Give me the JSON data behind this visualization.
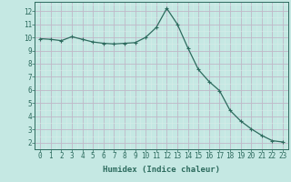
{
  "x": [
    0,
    1,
    2,
    3,
    4,
    5,
    6,
    7,
    8,
    9,
    10,
    11,
    12,
    13,
    14,
    15,
    16,
    17,
    18,
    19,
    20,
    21,
    22,
    23
  ],
  "y": [
    9.9,
    9.85,
    9.75,
    10.05,
    9.85,
    9.65,
    9.55,
    9.5,
    9.55,
    9.6,
    10.0,
    10.75,
    12.2,
    11.0,
    9.2,
    7.55,
    6.65,
    5.95,
    4.45,
    3.65,
    3.05,
    2.55,
    2.15,
    2.05
  ],
  "line_color": "#2d6b5e",
  "marker_color": "#2d6b5e",
  "bg_color": "#c5e8e3",
  "grid_major_color": "#c0b8c8",
  "grid_minor_color": "#d8ede9",
  "xlabel": "Humidex (Indice chaleur)",
  "ylim": [
    1.5,
    12.7
  ],
  "xlim": [
    -0.5,
    23.5
  ],
  "yticks": [
    2,
    3,
    4,
    5,
    6,
    7,
    8,
    9,
    10,
    11,
    12
  ],
  "xticks": [
    0,
    1,
    2,
    3,
    4,
    5,
    6,
    7,
    8,
    9,
    10,
    11,
    12,
    13,
    14,
    15,
    16,
    17,
    18,
    19,
    20,
    21,
    22,
    23
  ],
  "xlabel_fontsize": 6.5,
  "tick_fontsize": 5.5,
  "line_width": 0.9,
  "marker_size": 2.5,
  "axis_color": "#2d6b5e"
}
